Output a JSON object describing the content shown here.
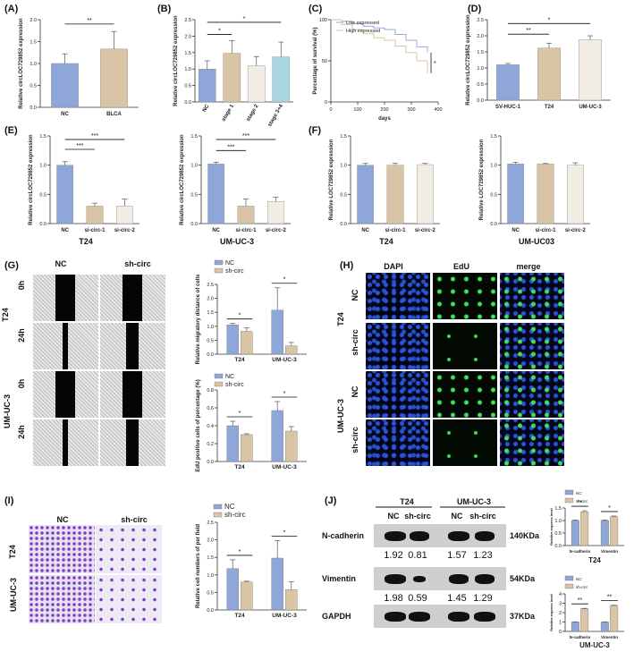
{
  "panels": {
    "A": "(A)",
    "B": "(B)",
    "C": "(C)",
    "D": "(D)",
    "E": "(E)",
    "F": "(F)",
    "G": "(G)",
    "H": "(H)",
    "I": "(I)",
    "J": "(J)"
  },
  "colors": {
    "blue": "#8fa6d8",
    "tan": "#d9c4a5",
    "cream": "#f1ede4",
    "teal": "#a9d6df",
    "err": "#555555"
  },
  "sig": {
    "two": "**",
    "one": "*",
    "three": "***"
  },
  "ylabels": {
    "circ": "Relative circLOC729852 expression",
    "loc": "Relative LOC729852 expression",
    "survival": "Percentage of survival (%)",
    "migratory": "Relative migratory distance of cells",
    "edu": "EdU positive cells of percentage (%)",
    "invasion": "Relative cell numbers of per field",
    "protein": "Relative express level"
  },
  "xlabels": {
    "days": "days"
  },
  "cells": {
    "t24": "T24",
    "umuc3": "UM-UC-3",
    "umuc03": "UM-UC03"
  },
  "legend": {
    "nc": "NC",
    "sh": "sh-circ",
    "low": "Low expressed",
    "high": "High expressed"
  },
  "image_labels": {
    "nc": "NC",
    "sh": "sh-circ",
    "h0": "0h",
    "h24": "24h",
    "dapi": "DAPI",
    "edu": "EdU",
    "merge": "merge"
  },
  "blot": {
    "t24": "T24",
    "umuc3": "UM-UC-3",
    "lanes": [
      "NC",
      "sh-circ",
      "NC",
      "sh-circ"
    ],
    "rows": [
      {
        "name": "N-cadherin",
        "kda": "140KDa",
        "values": [
          "1.92",
          "0.81",
          "1.57",
          "1.23"
        ]
      },
      {
        "name": "Vimentin",
        "kda": "54KDa",
        "values": [
          "1.98",
          "0.59",
          "1.45",
          "1.29"
        ]
      },
      {
        "name": "GAPDH",
        "kda": "37KDa",
        "values": []
      }
    ]
  },
  "chart_data": [
    {
      "id": "A",
      "type": "bar",
      "categories": [
        "NC",
        "BLCA"
      ],
      "values": [
        1.0,
        1.33
      ],
      "errors": [
        0.22,
        0.4
      ],
      "ylim": [
        0,
        2.0
      ],
      "yticks": [
        "0.0",
        "0.5",
        "1.0",
        "1.5",
        "2.0"
      ],
      "ylabel": "Relative circLOC729852 expression"
    },
    {
      "id": "B",
      "type": "bar",
      "categories": [
        "NC",
        "stage 1",
        "stage 2",
        "stage 3+4"
      ],
      "values": [
        1.0,
        1.48,
        1.1,
        1.37
      ],
      "errors": [
        0.25,
        0.38,
        0.28,
        0.45
      ],
      "ylim": [
        0,
        2.5
      ],
      "yticks": [
        "0.0",
        "0.5",
        "1.0",
        "1.5",
        "2.0",
        "2.5"
      ],
      "ylabel": "Relative circLOC729852 expression"
    },
    {
      "id": "C",
      "type": "line",
      "series": [
        {
          "name": "Low expressed",
          "x": [
            0,
            40,
            80,
            120,
            160,
            200,
            240,
            280,
            320,
            360
          ],
          "y": [
            100,
            98,
            95,
            92,
            90,
            88,
            82,
            75,
            67,
            60
          ]
        },
        {
          "name": "High expressed",
          "x": [
            0,
            40,
            80,
            120,
            160,
            200,
            240,
            280,
            320,
            360
          ],
          "y": [
            100,
            94,
            88,
            83,
            78,
            75,
            68,
            60,
            50,
            35
          ]
        }
      ],
      "xlim": [
        0,
        400
      ],
      "ylim": [
        0,
        100
      ],
      "xticks": [
        "0",
        "100",
        "200",
        "300",
        "400"
      ],
      "yticks": [
        "0",
        "50",
        "100"
      ],
      "xlabel": "days",
      "ylabel": "Percentage of survival (%)"
    },
    {
      "id": "D",
      "type": "bar",
      "categories": [
        "SV-HUC-1",
        "T24",
        "UM-UC-3"
      ],
      "values": [
        1.1,
        1.62,
        1.88
      ],
      "errors": [
        0.04,
        0.15,
        0.12
      ],
      "ylim": [
        0,
        2.5
      ],
      "yticks": [
        "0.0",
        "0.5",
        "1.0",
        "1.5",
        "2.0",
        "2.5"
      ],
      "ylabel": "Relative circLOC729852 expression"
    },
    {
      "id": "E1",
      "type": "bar",
      "categories": [
        "NC",
        "si-circ-1",
        "si-circ-2"
      ],
      "values": [
        1.0,
        0.3,
        0.3
      ],
      "errors": [
        0.06,
        0.05,
        0.12
      ],
      "ylim": [
        0,
        1.5
      ],
      "yticks": [
        "0.0",
        "0.5",
        "1.0",
        "1.5"
      ],
      "ylabel": "Relative circLOC729852 expression",
      "xlabel": "T24"
    },
    {
      "id": "E2",
      "type": "bar",
      "categories": [
        "NC",
        "si-circ-1",
        "si-circ-2"
      ],
      "values": [
        1.02,
        0.3,
        0.38
      ],
      "errors": [
        0.03,
        0.12,
        0.07
      ],
      "ylim": [
        0,
        1.5
      ],
      "yticks": [
        "0.0",
        "0.5",
        "1.0",
        "1.5"
      ],
      "ylabel": "Relative circLOC729852 expression",
      "xlabel": "UM-UC-3"
    },
    {
      "id": "F1",
      "type": "bar",
      "categories": [
        "NC",
        "si-circ-1",
        "si-circ-2"
      ],
      "values": [
        1.0,
        1.0,
        1.01
      ],
      "errors": [
        0.03,
        0.03,
        0.02
      ],
      "ylim": [
        0,
        1.5
      ],
      "yticks": [
        "0.0",
        "0.5",
        "1.0",
        "1.5"
      ],
      "ylabel": "Relative LOC729852 expression",
      "xlabel": "T24"
    },
    {
      "id": "F2",
      "type": "bar",
      "categories": [
        "NC",
        "si-circ-1",
        "si-circ-2"
      ],
      "values": [
        1.02,
        1.02,
        1.0
      ],
      "errors": [
        0.03,
        0.01,
        0.04
      ],
      "ylim": [
        0,
        1.5
      ],
      "yticks": [
        "0.0",
        "0.5",
        "1.0",
        "1.5"
      ],
      "ylabel": "Relative LOC729852 expression",
      "xlabel": "UM-UC03"
    },
    {
      "id": "G1",
      "type": "bar",
      "categories": [
        "T24",
        "UM-UC-3"
      ],
      "series": [
        {
          "name": "NC",
          "values": [
            1.05,
            1.58
          ],
          "errors": [
            0.05,
            0.8
          ]
        },
        {
          "name": "sh-circ",
          "values": [
            0.82,
            0.3
          ],
          "errors": [
            0.12,
            0.12
          ]
        }
      ],
      "ylim": [
        0,
        2.5
      ],
      "yticks": [
        "0.0",
        "0.5",
        "1.0",
        "1.5",
        "2.0",
        "2.5"
      ],
      "ylabel": "Relative migratory distance of cells"
    },
    {
      "id": "G2",
      "type": "bar",
      "categories": [
        "T24",
        "UM-UC-3"
      ],
      "series": [
        {
          "name": "NC",
          "values": [
            0.4,
            0.57
          ],
          "errors": [
            0.05,
            0.1
          ]
        },
        {
          "name": "sh-circ",
          "values": [
            0.3,
            0.34
          ],
          "errors": [
            0.01,
            0.05
          ]
        }
      ],
      "ylim": [
        0,
        0.8
      ],
      "yticks": [
        "0.0",
        "0.2",
        "0.4",
        "0.6",
        "0.8"
      ],
      "ylabel": "EdU positive cells of percentage (%)"
    },
    {
      "id": "I",
      "type": "bar",
      "categories": [
        "T24",
        "UM-UC-3"
      ],
      "series": [
        {
          "name": "NC",
          "values": [
            1.18,
            1.48
          ],
          "errors": [
            0.25,
            0.5
          ]
        },
        {
          "name": "sh-circ",
          "values": [
            0.8,
            0.58
          ],
          "errors": [
            0.02,
            0.22
          ]
        }
      ],
      "ylim": [
        0,
        2.5
      ],
      "yticks": [
        "0.0",
        "0.5",
        "1.0",
        "1.5",
        "2.0",
        "2.5"
      ],
      "ylabel": "Relative cell numbers of per field"
    },
    {
      "id": "J1",
      "type": "bar",
      "categories": [
        "N-cadherin",
        "Vimentin"
      ],
      "series": [
        {
          "name": "NC",
          "values": [
            1.0,
            1.0
          ],
          "errors": [
            0.02,
            0.02
          ]
        },
        {
          "name": "sh-circ",
          "values": [
            1.35,
            1.15
          ],
          "errors": [
            0.04,
            0.03
          ]
        }
      ],
      "ylim": [
        0,
        1.5
      ],
      "yticks": [
        "0.0",
        "0.5",
        "1.0",
        "1.5"
      ],
      "ylabel": "Relative express level",
      "xlabel": "T24"
    },
    {
      "id": "J2",
      "type": "bar",
      "categories": [
        "N-cadherin",
        "Vimentin"
      ],
      "series": [
        {
          "name": "NC",
          "values": [
            1.0,
            1.0
          ],
          "errors": [
            0.02,
            0.02
          ]
        },
        {
          "name": "sh-circ",
          "values": [
            2.4,
            2.75
          ],
          "errors": [
            0.06,
            0.05
          ]
        }
      ],
      "ylim": [
        0,
        4
      ],
      "yticks": [
        "0",
        "1",
        "2",
        "3",
        "4"
      ],
      "ylabel": "Relative express level",
      "xlabel": "UM-UC-3"
    }
  ]
}
